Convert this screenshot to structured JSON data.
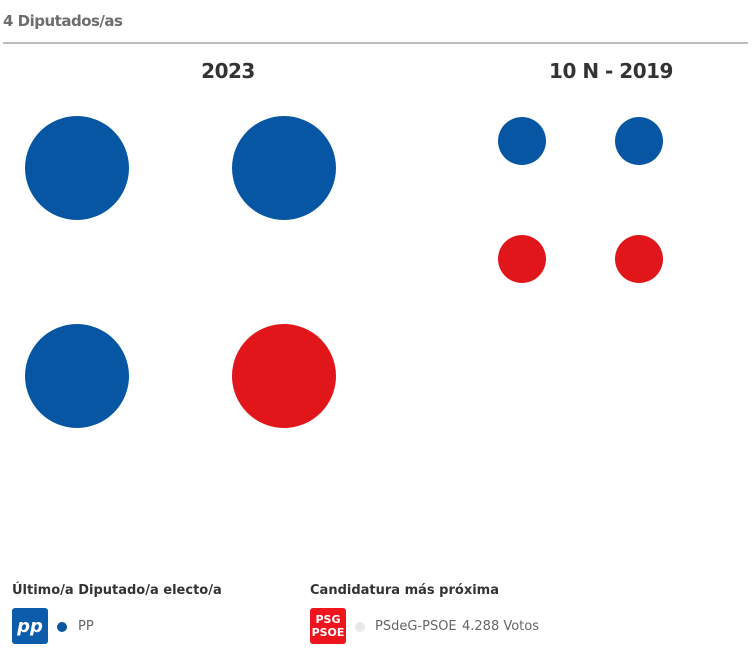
{
  "header": {
    "title": "4 Diputados/as"
  },
  "colors": {
    "PP": "#0756a3",
    "PSOE": "#e1161b",
    "inactive": "#e8e8e8"
  },
  "panels": [
    {
      "title": "2023",
      "seats": [
        "PP",
        "PP",
        "PP",
        "PSOE"
      ]
    },
    {
      "title": "10 N - 2019",
      "seats": [
        "PP",
        "PP",
        "PSOE",
        "PSOE"
      ]
    }
  ],
  "last_elected": {
    "label": "Último/a Diputado/a electo/a",
    "party": "PP",
    "logo_icon": "pp-logo",
    "logo_text": "pp"
  },
  "closest": {
    "label": "Candidatura más próxima",
    "party": "PSdeG-PSOE",
    "votes": "4.288 Votos",
    "logo_icon": "psoe-logo",
    "logo_text_top": "PSG",
    "logo_text_bottom": "PSOE"
  }
}
